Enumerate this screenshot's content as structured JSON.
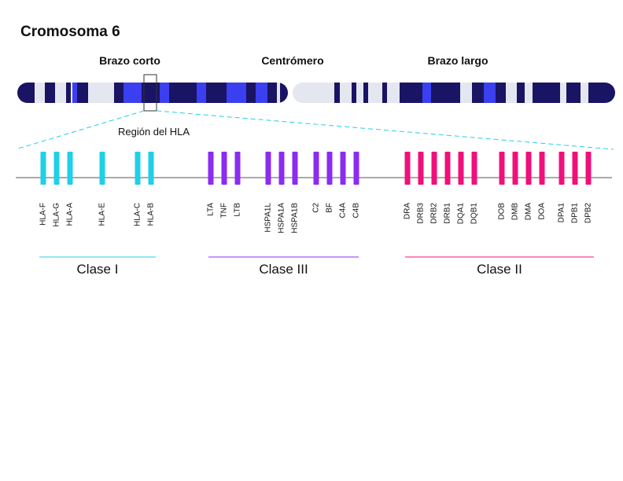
{
  "header": {
    "title": "Cromosoma 6"
  },
  "chromosome": {
    "short_arm": "Brazo corto",
    "centromere": "Centrómero",
    "long_arm": "Brazo largo",
    "region": "Región del HLA"
  },
  "classes": [
    {
      "label": "Clase I",
      "genes": [
        "HLA-F",
        "HLA-G",
        "HLA-A",
        "HLA-E",
        "HLA-C",
        "HLA-B"
      ]
    },
    {
      "label": "Clase III",
      "genes": [
        "LTA",
        "TNF",
        "LTB",
        "HSPA1L",
        "HSPA1A",
        "HSPA1B",
        "C2",
        "BF",
        "C4A",
        "C4B"
      ]
    },
    {
      "label": "Clase II",
      "genes": [
        "DRA",
        "DRB3",
        "DRB2",
        "DRB1",
        "DQA1",
        "DQB1",
        "DOB",
        "DMB",
        "DMA",
        "DOA",
        "DPA1",
        "DPB1",
        "DPB2"
      ]
    }
  ]
}
